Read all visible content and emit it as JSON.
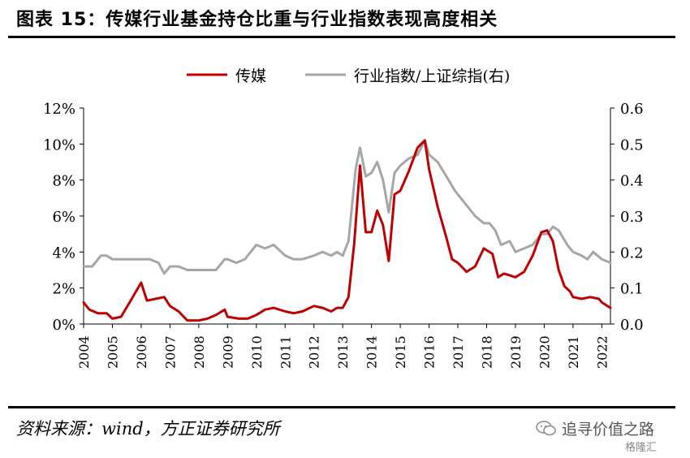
{
  "figure": {
    "title": "图表 15：传媒行业基金持仓比重与行业指数表现高度相关",
    "source": "资料来源：wind，方正证券研究所",
    "watermark": "追寻价值之路",
    "watermark_sub": "格隆汇"
  },
  "chart_data": {
    "type": "line",
    "title": "",
    "xlabel": "",
    "ylabel": "",
    "x_ticks": [
      "2004",
      "2005",
      "2006",
      "2007",
      "2008",
      "2009",
      "2010",
      "2011",
      "2012",
      "2013",
      "2014",
      "2015",
      "2016",
      "2017",
      "2018",
      "2019",
      "2020",
      "2021",
      "2022"
    ],
    "x_range": [
      2004.0,
      2022.3
    ],
    "ylim_left": [
      0,
      12
    ],
    "ylim_right": [
      0,
      0.6
    ],
    "y_left_ticks": [
      "0%",
      "2%",
      "4%",
      "6%",
      "8%",
      "10%",
      "12%"
    ],
    "y_right_ticks": [
      "0.0",
      "0.1",
      "0.2",
      "0.3",
      "0.4",
      "0.5",
      "0.6"
    ],
    "grid": false,
    "legend_position": "top-center",
    "colors": {
      "media": "#c00000",
      "index": "#a6a6a6"
    },
    "series": [
      {
        "name": "传媒",
        "axis": "left",
        "x": [
          2004.0,
          2004.2,
          2004.5,
          2004.8,
          2005.0,
          2005.3,
          2005.6,
          2006.0,
          2006.2,
          2006.5,
          2006.8,
          2007.0,
          2007.3,
          2007.6,
          2008.0,
          2008.3,
          2008.6,
          2008.9,
          2009.0,
          2009.4,
          2009.7,
          2010.0,
          2010.3,
          2010.6,
          2011.0,
          2011.3,
          2011.6,
          2012.0,
          2012.3,
          2012.6,
          2012.8,
          2013.0,
          2013.2,
          2013.4,
          2013.6,
          2013.8,
          2014.0,
          2014.2,
          2014.4,
          2014.6,
          2014.8,
          2015.0,
          2015.3,
          2015.6,
          2015.85,
          2016.0,
          2016.3,
          2016.6,
          2016.8,
          2017.0,
          2017.3,
          2017.6,
          2017.9,
          2018.0,
          2018.2,
          2018.4,
          2018.6,
          2018.8,
          2019.0,
          2019.3,
          2019.6,
          2019.9,
          2020.1,
          2020.3,
          2020.5,
          2020.7,
          2020.9,
          2021.0,
          2021.3,
          2021.6,
          2021.9,
          2022.0,
          2022.3
        ],
        "values": [
          1.2,
          0.8,
          0.6,
          0.6,
          0.3,
          0.4,
          1.2,
          2.3,
          1.3,
          1.4,
          1.5,
          1.0,
          0.7,
          0.2,
          0.2,
          0.3,
          0.5,
          0.8,
          0.4,
          0.3,
          0.3,
          0.5,
          0.8,
          0.9,
          0.7,
          0.6,
          0.7,
          1.0,
          0.9,
          0.7,
          0.9,
          0.9,
          1.5,
          4.5,
          8.8,
          5.1,
          5.1,
          6.3,
          5.5,
          3.5,
          7.2,
          7.4,
          8.5,
          9.8,
          10.2,
          8.6,
          6.5,
          4.8,
          3.6,
          3.4,
          2.9,
          3.2,
          4.2,
          4.1,
          3.9,
          2.6,
          2.8,
          2.7,
          2.6,
          2.9,
          3.8,
          5.1,
          5.2,
          4.6,
          3.0,
          2.1,
          1.8,
          1.5,
          1.4,
          1.5,
          1.4,
          1.2,
          0.9
        ]
      },
      {
        "name": "行业指数/上证综指(右)",
        "axis": "right",
        "x": [
          2004.0,
          2004.3,
          2004.6,
          2004.8,
          2005.0,
          2005.3,
          2005.6,
          2006.0,
          2006.3,
          2006.6,
          2006.8,
          2007.0,
          2007.3,
          2007.6,
          2008.0,
          2008.3,
          2008.6,
          2008.9,
          2009.0,
          2009.3,
          2009.6,
          2010.0,
          2010.3,
          2010.6,
          2011.0,
          2011.3,
          2011.6,
          2012.0,
          2012.3,
          2012.6,
          2012.8,
          2013.0,
          2013.2,
          2013.45,
          2013.6,
          2013.8,
          2014.0,
          2014.2,
          2014.4,
          2014.6,
          2014.8,
          2015.0,
          2015.3,
          2015.6,
          2015.85,
          2016.0,
          2016.3,
          2016.6,
          2016.9,
          2017.0,
          2017.3,
          2017.6,
          2017.9,
          2018.1,
          2018.3,
          2018.5,
          2018.8,
          2019.0,
          2019.3,
          2019.6,
          2019.9,
          2020.1,
          2020.3,
          2020.5,
          2020.8,
          2021.0,
          2021.3,
          2021.5,
          2021.7,
          2022.0,
          2022.3
        ],
        "values": [
          0.16,
          0.16,
          0.19,
          0.19,
          0.18,
          0.18,
          0.18,
          0.18,
          0.18,
          0.17,
          0.14,
          0.16,
          0.16,
          0.15,
          0.15,
          0.15,
          0.15,
          0.18,
          0.18,
          0.17,
          0.18,
          0.22,
          0.21,
          0.22,
          0.19,
          0.18,
          0.18,
          0.19,
          0.2,
          0.19,
          0.2,
          0.19,
          0.23,
          0.43,
          0.49,
          0.41,
          0.42,
          0.45,
          0.4,
          0.31,
          0.42,
          0.44,
          0.46,
          0.47,
          0.51,
          0.47,
          0.45,
          0.41,
          0.37,
          0.36,
          0.33,
          0.3,
          0.28,
          0.28,
          0.26,
          0.22,
          0.23,
          0.2,
          0.21,
          0.22,
          0.25,
          0.25,
          0.27,
          0.26,
          0.22,
          0.2,
          0.19,
          0.18,
          0.2,
          0.18,
          0.17
        ]
      }
    ]
  }
}
